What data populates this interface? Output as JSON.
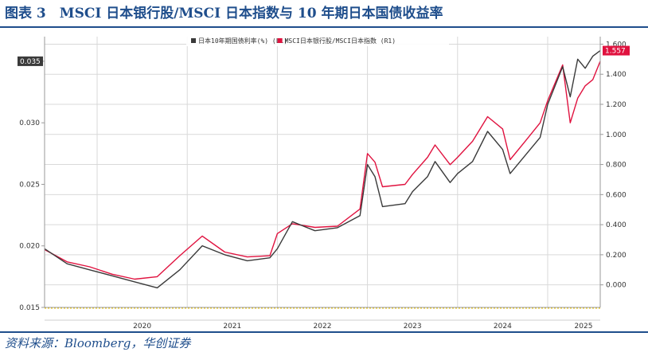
{
  "figure": {
    "title": "图表 3　MSCI 日本银行股/MSCI 日本指数与 10 年期日本国债收益率",
    "source": "资料来源：Bloomberg，华创证券"
  },
  "colors": {
    "title": "#1f4e8c",
    "jgb": "#3a3a3a",
    "ratio": "#e0123f",
    "grid": "#d9d9d9"
  },
  "chart_data": {
    "type": "line",
    "x_ticks": [
      "2020",
      "2021",
      "2022",
      "2023",
      "2024",
      "2025"
    ],
    "x_range": [
      "2019-06",
      "2025-08"
    ],
    "y_left": {
      "range": [
        0.015,
        0.037
      ],
      "ticks": [
        "0.015",
        "0.020",
        "0.025",
        "0.030",
        "0.035"
      ],
      "ticks_values": [
        0.015,
        0.02,
        0.025,
        0.03,
        0.035
      ]
    },
    "y_right": {
      "range": [
        -0.15,
        1.65
      ],
      "ticks": [
        "0.000",
        "0.200",
        "0.400",
        "0.600",
        "0.800",
        "1.000",
        "1.200",
        "1.400",
        "1.600"
      ],
      "ticks_values": [
        0,
        0.2,
        0.4,
        0.6,
        0.8,
        1.0,
        1.2,
        1.4,
        1.6
      ]
    },
    "grid": true,
    "legend_position": "top-center",
    "series": [
      {
        "name": "日本10年期国债利率(%) (L1)",
        "axis": "right",
        "last_label": "1.557",
        "points": [
          [
            "2019-06",
            0.24
          ],
          [
            "2019-09",
            0.14
          ],
          [
            "2019-12",
            0.1
          ],
          [
            "2020-03",
            0.06
          ],
          [
            "2020-06",
            0.02
          ],
          [
            "2020-09",
            -0.02
          ],
          [
            "2020-12",
            0.1
          ],
          [
            "2021-03",
            0.26
          ],
          [
            "2021-06",
            0.2
          ],
          [
            "2021-09",
            0.16
          ],
          [
            "2021-12",
            0.18
          ],
          [
            "2022-01",
            0.24
          ],
          [
            "2022-03",
            0.42
          ],
          [
            "2022-06",
            0.36
          ],
          [
            "2022-09",
            0.38
          ],
          [
            "2022-12",
            0.46
          ],
          [
            "2023-01",
            0.8
          ],
          [
            "2023-02",
            0.72
          ],
          [
            "2023-03",
            0.52
          ],
          [
            "2023-06",
            0.54
          ],
          [
            "2023-07",
            0.62
          ],
          [
            "2023-09",
            0.72
          ],
          [
            "2023-10",
            0.82
          ],
          [
            "2023-12",
            0.68
          ],
          [
            "2024-01",
            0.74
          ],
          [
            "2024-03",
            0.82
          ],
          [
            "2024-05",
            1.02
          ],
          [
            "2024-07",
            0.9
          ],
          [
            "2024-08",
            0.74
          ],
          [
            "2024-10",
            0.86
          ],
          [
            "2024-12",
            0.98
          ],
          [
            "2025-01",
            1.2
          ],
          [
            "2025-03",
            1.45
          ],
          [
            "2025-04",
            1.25
          ],
          [
            "2025-05",
            1.5
          ],
          [
            "2025-06",
            1.44
          ],
          [
            "2025-07",
            1.52
          ],
          [
            "2025-08",
            1.557
          ]
        ]
      },
      {
        "name": "MSCI日本银行股/MSCI日本指数 (R1)",
        "axis": "left",
        "last_label": "0.035",
        "points": [
          [
            "2019-06",
            0.0197
          ],
          [
            "2019-09",
            0.0187
          ],
          [
            "2019-12",
            0.0183
          ],
          [
            "2020-03",
            0.0177
          ],
          [
            "2020-06",
            0.0173
          ],
          [
            "2020-09",
            0.0175
          ],
          [
            "2020-12",
            0.0192
          ],
          [
            "2021-03",
            0.0208
          ],
          [
            "2021-06",
            0.0195
          ],
          [
            "2021-09",
            0.0191
          ],
          [
            "2021-12",
            0.0192
          ],
          [
            "2022-01",
            0.021
          ],
          [
            "2022-03",
            0.0218
          ],
          [
            "2022-06",
            0.0215
          ],
          [
            "2022-09",
            0.0216
          ],
          [
            "2022-12",
            0.023
          ],
          [
            "2023-01",
            0.0275
          ],
          [
            "2023-02",
            0.0268
          ],
          [
            "2023-03",
            0.0248
          ],
          [
            "2023-06",
            0.025
          ],
          [
            "2023-07",
            0.0258
          ],
          [
            "2023-09",
            0.0272
          ],
          [
            "2023-10",
            0.0282
          ],
          [
            "2023-12",
            0.0266
          ],
          [
            "2024-01",
            0.0272
          ],
          [
            "2024-03",
            0.0285
          ],
          [
            "2024-05",
            0.0305
          ],
          [
            "2024-07",
            0.0295
          ],
          [
            "2024-08",
            0.027
          ],
          [
            "2024-10",
            0.0285
          ],
          [
            "2024-12",
            0.03
          ],
          [
            "2025-01",
            0.0318
          ],
          [
            "2025-03",
            0.0347
          ],
          [
            "2025-04",
            0.03
          ],
          [
            "2025-05",
            0.032
          ],
          [
            "2025-06",
            0.033
          ],
          [
            "2025-07",
            0.0335
          ],
          [
            "2025-08",
            0.035
          ]
        ]
      }
    ]
  }
}
